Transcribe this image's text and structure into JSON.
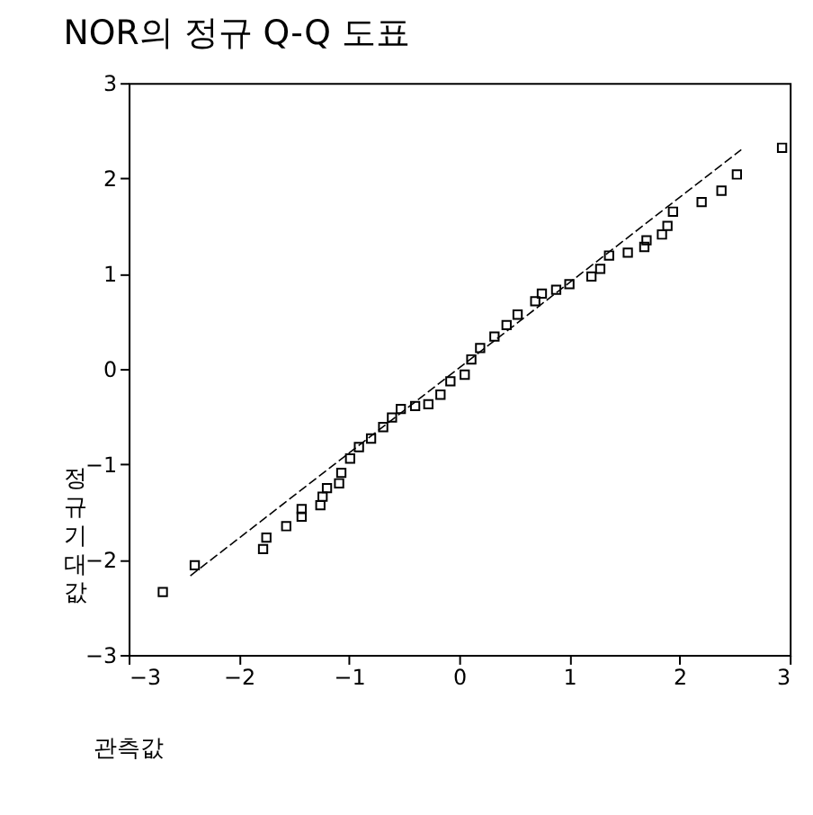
{
  "chart_data": {
    "type": "scatter",
    "title": "NOR의 정규 Q-Q 도표",
    "xlabel": "관측값",
    "ylabel": "정규 기대값",
    "xlim": [
      -3,
      3
    ],
    "ylim": [
      -3,
      3
    ],
    "xticks": [
      -3,
      -2,
      -1,
      0,
      1,
      2,
      3
    ],
    "yticks": [
      -3,
      -2,
      -1,
      0,
      1,
      2,
      3
    ],
    "grid": false,
    "series": [
      {
        "type": "scatter",
        "marker": "square",
        "color": "#000000",
        "x": [
          -2.69,
          -2.4,
          -1.78,
          -1.75,
          -1.57,
          -1.43,
          -1.43,
          -1.26,
          -1.24,
          -1.2,
          -1.09,
          -1.07,
          -0.99,
          -0.91,
          -0.8,
          -0.69,
          -0.61,
          -0.53,
          -0.4,
          -0.28,
          -0.17,
          -0.08,
          0.05,
          0.11,
          0.19,
          0.32,
          0.43,
          0.53,
          0.69,
          0.75,
          0.88,
          1.0,
          1.2,
          1.28,
          1.36,
          1.53,
          1.68,
          1.7,
          1.84,
          1.89,
          1.94,
          2.2,
          2.38,
          2.52,
          2.93
        ],
        "values": [
          -2.34,
          -2.06,
          -1.89,
          -1.77,
          -1.65,
          -1.55,
          -1.47,
          -1.43,
          -1.34,
          -1.25,
          -1.2,
          -1.09,
          -0.94,
          -0.82,
          -0.73,
          -0.61,
          -0.51,
          -0.42,
          -0.39,
          -0.37,
          -0.27,
          -0.13,
          -0.06,
          0.1,
          0.22,
          0.34,
          0.46,
          0.57,
          0.71,
          0.79,
          0.83,
          0.89,
          0.97,
          1.05,
          1.19,
          1.22,
          1.28,
          1.35,
          1.41,
          1.5,
          1.65,
          1.75,
          1.87,
          2.04,
          2.32
        ]
      },
      {
        "type": "line",
        "color": "#000000",
        "x": [
          -2.44,
          2.56
        ],
        "values": [
          -2.17,
          2.3
        ],
        "marker": "none",
        "line_style": "dashed"
      }
    ]
  }
}
